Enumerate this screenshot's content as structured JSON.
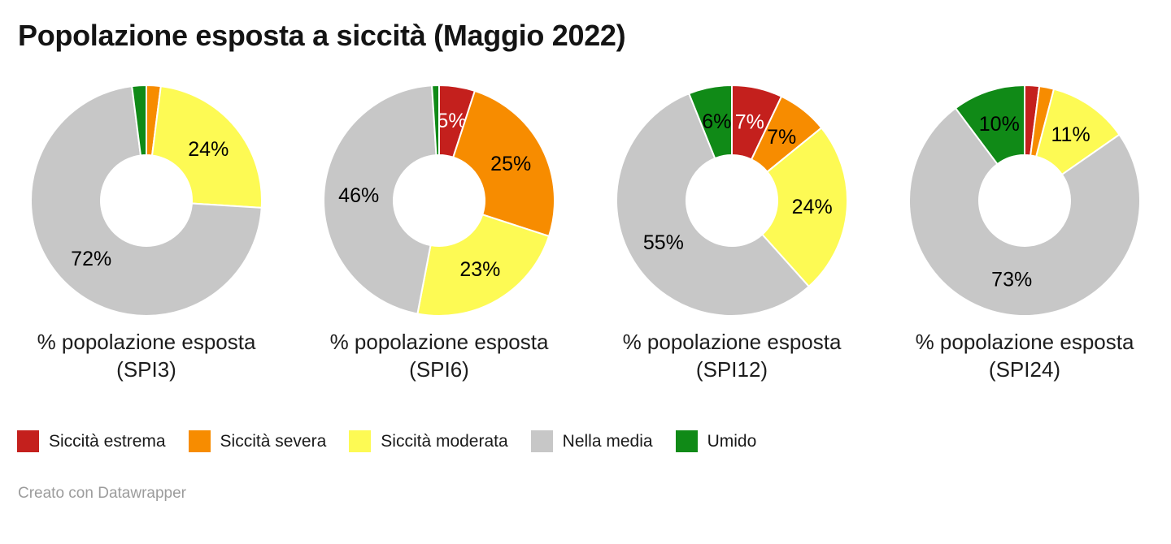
{
  "title": "Popolazione esposta a siccità (Maggio 2022)",
  "footer": {
    "attribution": "Creato con Datawrapper"
  },
  "chart_data": {
    "type": "pie",
    "subtype": "donut",
    "unit": "%",
    "legend_position": "bottom",
    "categories": [
      "Siccità estrema",
      "Siccità severa",
      "Siccità moderata",
      "Nella media",
      "Umido"
    ],
    "colors": [
      "#c4201d",
      "#f78c00",
      "#fdfa54",
      "#c7c7c7",
      "#108a17"
    ],
    "slice_label_text_colors": [
      "#ffffff",
      "#000000",
      "#000000",
      "#000000",
      "#000000"
    ],
    "min_pct_for_label": 5,
    "donuts": [
      {
        "caption": "% popolazione esposta",
        "subcaption": "(SPI3)",
        "values": [
          0,
          2,
          24,
          72,
          2
        ]
      },
      {
        "caption": "% popolazione esposta",
        "subcaption": "(SPI6)",
        "values": [
          5,
          25,
          23,
          46,
          1
        ]
      },
      {
        "caption": "% popolazione esposta",
        "subcaption": "(SPI12)",
        "values": [
          7,
          7,
          24,
          55,
          6
        ]
      },
      {
        "caption": "% popolazione esposta",
        "subcaption": "(SPI24)",
        "values": [
          2,
          2,
          11,
          73,
          10
        ]
      }
    ]
  }
}
